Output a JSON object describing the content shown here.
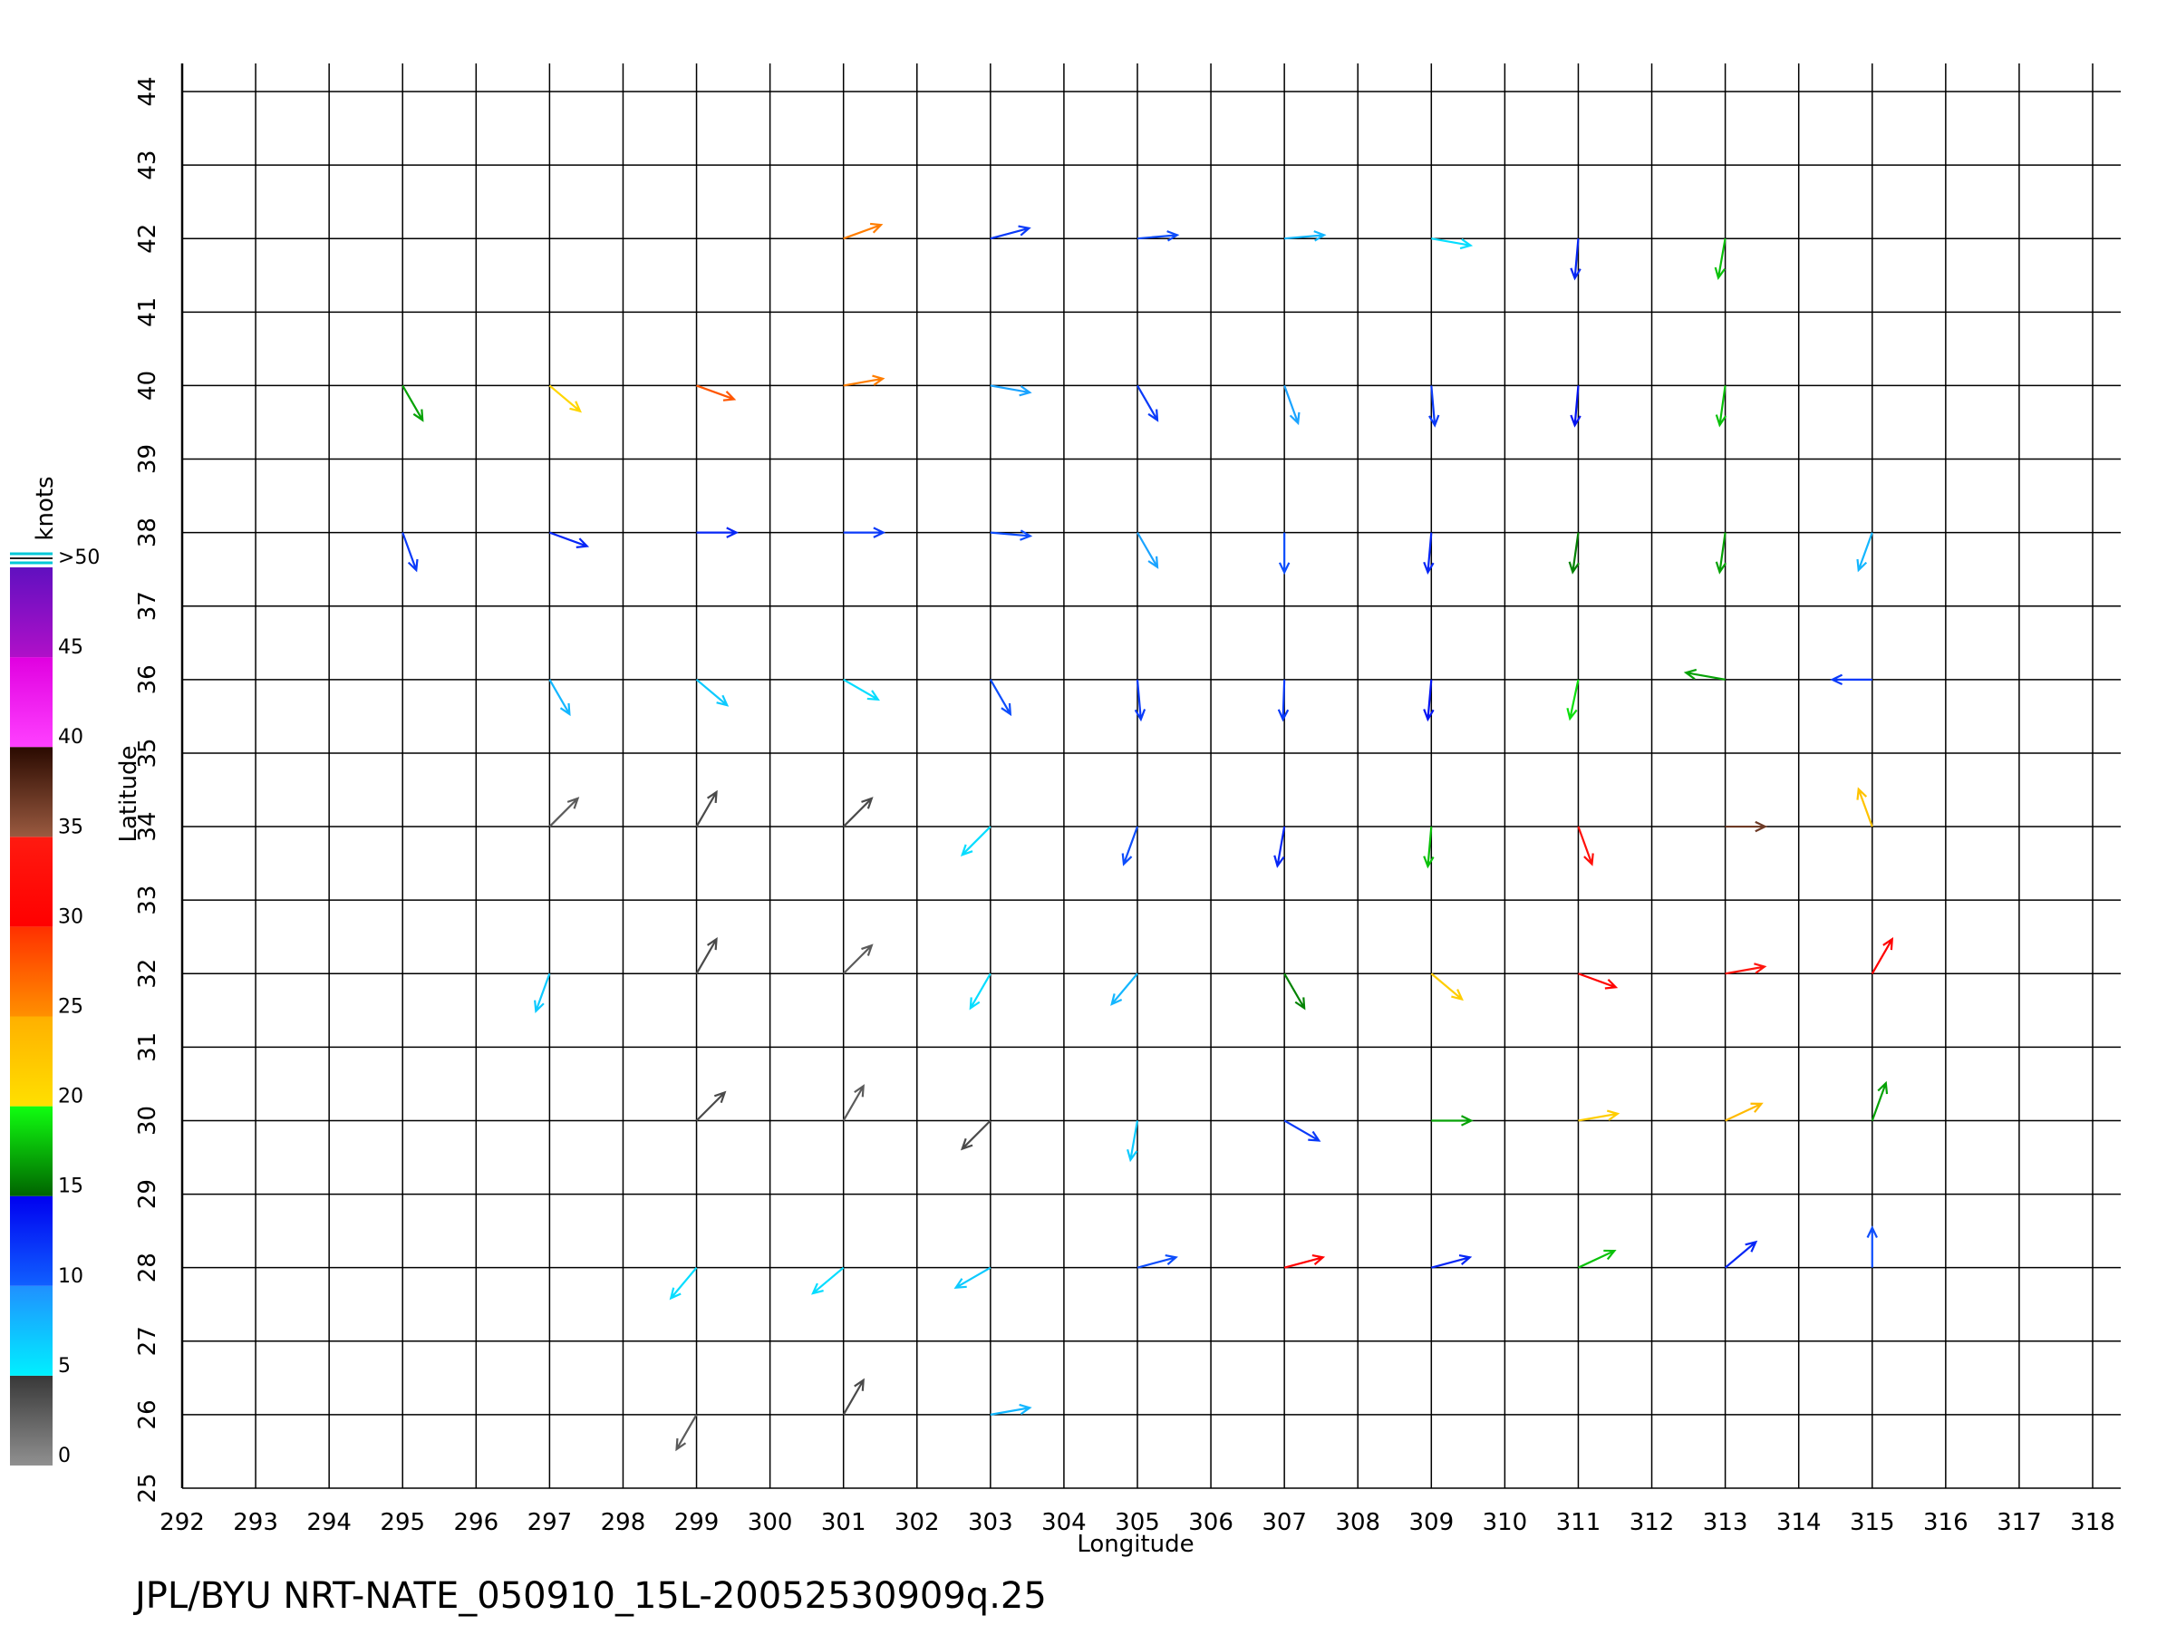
{
  "chart_data": {
    "type": "quiver",
    "title": "JPL/BYU  NRT-NATE_050910_15L-20052530909q.25",
    "xlabel": "Longitude",
    "ylabel": "Latitude",
    "xlim": [
      292,
      318
    ],
    "ylim": [
      25,
      44
    ],
    "xticks": [
      292,
      293,
      294,
      295,
      296,
      297,
      298,
      299,
      300,
      301,
      302,
      303,
      304,
      305,
      306,
      307,
      308,
      309,
      310,
      311,
      312,
      313,
      314,
      315,
      316,
      317,
      318
    ],
    "yticks": [
      25,
      26,
      27,
      28,
      29,
      30,
      31,
      32,
      33,
      34,
      35,
      36,
      37,
      38,
      39,
      40,
      41,
      42,
      43,
      44
    ],
    "grid": true,
    "colorbar": {
      "label": "knots",
      "lim": [
        0,
        50
      ],
      "ticks": [
        0,
        5,
        10,
        15,
        20,
        25,
        30,
        35,
        40,
        45,
        {
          "value": 50,
          "label": ">50"
        }
      ],
      "colors": [
        [
          "#909090",
          "#383838"
        ],
        [
          "#00f0ff",
          "#2090ff"
        ],
        [
          "#1060ff",
          "#0000f0"
        ],
        [
          "#006400",
          "#10ff10"
        ],
        [
          "#ffe000",
          "#ffb000"
        ],
        [
          "#ff9000",
          "#ff3000"
        ],
        [
          "#ff0000",
          "#ff1a10"
        ],
        [
          "#9a5a40",
          "#2a0a00"
        ],
        [
          "#ff40ff",
          "#e000e0"
        ],
        [
          "#b010c8",
          "#6010c0"
        ]
      ]
    },
    "x": [
      301,
      303,
      305,
      307,
      309,
      311,
      313,
      295,
      297,
      299,
      301,
      303,
      305,
      307,
      309,
      311,
      313,
      295,
      297,
      299,
      301,
      303,
      305,
      307,
      309,
      311,
      313,
      315,
      297,
      299,
      301,
      303,
      305,
      307,
      309,
      311,
      313,
      315,
      297,
      299,
      301,
      303,
      305,
      307,
      309,
      311,
      313,
      315,
      297,
      299,
      301,
      303,
      305,
      307,
      309,
      311,
      313,
      315,
      299,
      301,
      303,
      305,
      307,
      309,
      311,
      313,
      315,
      299,
      301,
      303,
      305,
      307,
      309,
      311,
      313,
      315,
      299,
      301,
      303
    ],
    "y": [
      42,
      42,
      42,
      42,
      42,
      42,
      42,
      40,
      40,
      40,
      40,
      40,
      40,
      40,
      40,
      40,
      40,
      38,
      38,
      38,
      38,
      38,
      38,
      38,
      38,
      38,
      38,
      38,
      36,
      36,
      36,
      36,
      36,
      36,
      36,
      36,
      36,
      36,
      34,
      34,
      34,
      34,
      34,
      34,
      34,
      34,
      34,
      34,
      32,
      32,
      32,
      32,
      32,
      32,
      32,
      32,
      32,
      32,
      30,
      30,
      30,
      30,
      30,
      30,
      30,
      30,
      30,
      28,
      28,
      28,
      28,
      28,
      28,
      28,
      28,
      28,
      26,
      26,
      26
    ],
    "speed": [
      26,
      12,
      11,
      8,
      6,
      13,
      18,
      17,
      21,
      28,
      26,
      9,
      12,
      9,
      12,
      14,
      18,
      12,
      13,
      13,
      12,
      11,
      9,
      11,
      13,
      16,
      17,
      8,
      8,
      7,
      6,
      11,
      12,
      12,
      14,
      19,
      17,
      12,
      3,
      4,
      4,
      6,
      11,
      13,
      18,
      33,
      37,
      23,
      7,
      4,
      3,
      6,
      8,
      16,
      22,
      31,
      34,
      30,
      4,
      3,
      4,
      7,
      12,
      17,
      22,
      24,
      17,
      6,
      6,
      7,
      11,
      30,
      13,
      18,
      13,
      11,
      3,
      4,
      8
    ],
    "direction": [
      20,
      15,
      5,
      5,
      350,
      265,
      260,
      300,
      320,
      340,
      10,
      350,
      300,
      290,
      275,
      265,
      262,
      290,
      340,
      0,
      0,
      355,
      300,
      270,
      265,
      262,
      262,
      250,
      300,
      320,
      330,
      300,
      275,
      268,
      265,
      258,
      170,
      180,
      45,
      60,
      45,
      225,
      250,
      260,
      265,
      290,
      0,
      110,
      250,
      60,
      45,
      240,
      230,
      300,
      320,
      340,
      10,
      60,
      45,
      60,
      225,
      260,
      330,
      0,
      10,
      25,
      70,
      230,
      220,
      210,
      15,
      15,
      15,
      25,
      40,
      90,
      240,
      60,
      10
    ]
  }
}
